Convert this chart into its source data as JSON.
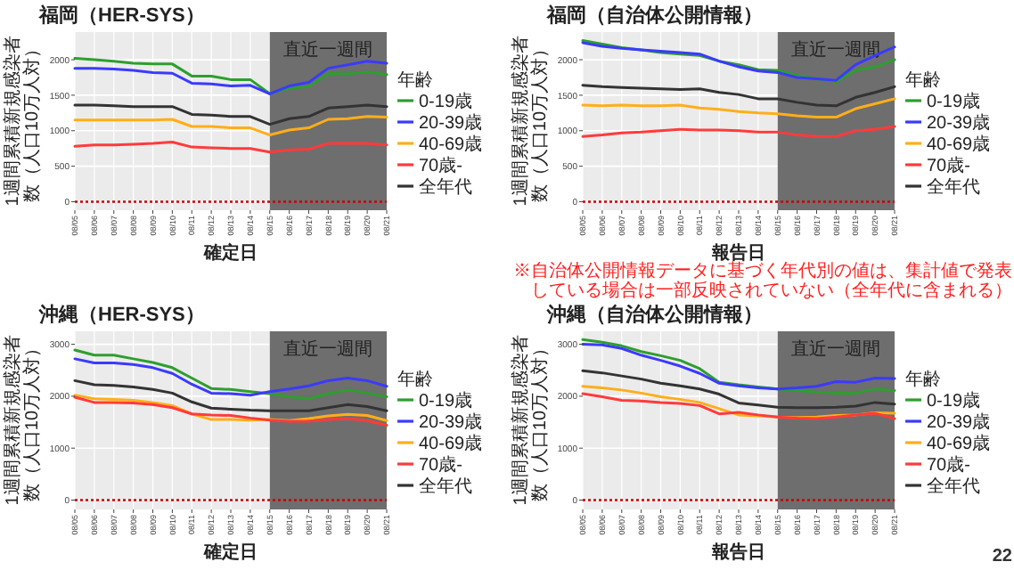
{
  "chart_data": [
    {
      "type": "line",
      "title": "福岡（HER-SYS）",
      "xlabel": "確定日",
      "ylabel": "1週間累積新規感染者数（人口10万人対）",
      "legend_title": "年齢",
      "legend": "right",
      "grid": true,
      "marker": "none",
      "line_style": "solid",
      "categories": [
        "08/05",
        "08/06",
        "08/07",
        "08/08",
        "08/09",
        "08/10",
        "08/11",
        "08/12",
        "08/13",
        "08/14",
        "08/15",
        "08/16",
        "08/17",
        "08/18",
        "08/19",
        "08/20",
        "08/21"
      ],
      "ylim": [
        -120,
        2390
      ],
      "yticks": [
        0,
        500,
        1000,
        1500,
        2000
      ],
      "bands": [
        {
          "axis": "x",
          "from": "08/15",
          "to": "08/21",
          "label": "直近一週間",
          "color": "#6e6e6e"
        }
      ],
      "ref_lines": [
        {
          "axis": "y",
          "value": 0,
          "color": "#cc0000",
          "line_style": "dotted"
        }
      ],
      "series": [
        {
          "name": "0-19歳",
          "color": "#2e9e2e",
          "values": [
            2020,
            2000,
            1980,
            1950,
            1940,
            1940,
            1770,
            1770,
            1720,
            1720,
            1520,
            1600,
            1620,
            1810,
            1800,
            1830,
            1790
          ]
        },
        {
          "name": "20-39歳",
          "color": "#3a3aff",
          "values": [
            1880,
            1880,
            1870,
            1850,
            1820,
            1810,
            1670,
            1660,
            1630,
            1640,
            1520,
            1630,
            1680,
            1880,
            1930,
            1980,
            1950
          ]
        },
        {
          "name": "40-69歳",
          "color": "#ffae1a",
          "values": [
            1150,
            1150,
            1150,
            1150,
            1150,
            1160,
            1060,
            1060,
            1040,
            1040,
            940,
            1010,
            1040,
            1160,
            1170,
            1200,
            1190
          ]
        },
        {
          "name": "70歳-",
          "color": "#ff3b3b",
          "values": [
            780,
            800,
            800,
            810,
            820,
            840,
            770,
            760,
            750,
            750,
            700,
            730,
            740,
            820,
            820,
            820,
            800
          ]
        },
        {
          "name": "全年代",
          "color": "#333333",
          "values": [
            1360,
            1360,
            1350,
            1340,
            1340,
            1340,
            1230,
            1220,
            1200,
            1200,
            1090,
            1170,
            1200,
            1320,
            1340,
            1360,
            1340
          ]
        }
      ]
    },
    {
      "type": "line",
      "title": "福岡（自治体公開情報）",
      "xlabel": "報告日",
      "ylabel": "1週間累積新規感染者数（人口10万人対）",
      "legend_title": "年齢",
      "legend": "right",
      "grid": true,
      "marker": "none",
      "line_style": "solid",
      "annotations": [
        "※自治体公開情報データに基づく年代別の値は、集計値で発表している場合は一部反映されていない（全年代に含まれる）"
      ],
      "categories": [
        "08/05",
        "08/06",
        "08/07",
        "08/08",
        "08/09",
        "08/10",
        "08/11",
        "08/12",
        "08/13",
        "08/14",
        "08/15",
        "08/16",
        "08/17",
        "08/18",
        "08/19",
        "08/20",
        "08/21"
      ],
      "ylim": [
        -120,
        2390
      ],
      "yticks": [
        0,
        500,
        1000,
        1500,
        2000
      ],
      "bands": [
        {
          "axis": "x",
          "from": "08/15",
          "to": "08/21",
          "label": "直近一週間",
          "color": "#6e6e6e"
        }
      ],
      "ref_lines": [
        {
          "axis": "y",
          "value": 0,
          "color": "#cc0000",
          "line_style": "dotted"
        }
      ],
      "series": [
        {
          "name": "0-19歳",
          "color": "#2e9e2e",
          "values": [
            2270,
            2220,
            2170,
            2140,
            2100,
            2080,
            2060,
            1980,
            1930,
            1860,
            1850,
            1780,
            1730,
            1690,
            1850,
            1900,
            2000
          ]
        },
        {
          "name": "20-39歳",
          "color": "#3a3aff",
          "values": [
            2240,
            2190,
            2160,
            2140,
            2120,
            2100,
            2080,
            1980,
            1900,
            1840,
            1820,
            1750,
            1730,
            1710,
            1930,
            2060,
            2180
          ]
        },
        {
          "name": "40-69歳",
          "color": "#ffae1a",
          "values": [
            1360,
            1350,
            1360,
            1350,
            1350,
            1360,
            1320,
            1300,
            1270,
            1250,
            1240,
            1210,
            1190,
            1190,
            1310,
            1380,
            1450
          ]
        },
        {
          "name": "70歳-",
          "color": "#ff3b3b",
          "values": [
            920,
            940,
            970,
            980,
            1000,
            1020,
            1010,
            1010,
            1000,
            980,
            980,
            940,
            920,
            920,
            1000,
            1020,
            1060
          ]
        },
        {
          "name": "全年代",
          "color": "#333333",
          "values": [
            1640,
            1620,
            1610,
            1600,
            1590,
            1580,
            1590,
            1540,
            1510,
            1450,
            1450,
            1400,
            1360,
            1350,
            1470,
            1540,
            1620
          ]
        }
      ]
    },
    {
      "type": "line",
      "title": "沖縄（HER-SYS）",
      "xlabel": "確定日",
      "ylabel": "1週間累積新規感染者数（人口10万人対）",
      "legend_title": "年齢",
      "legend": "right",
      "grid": true,
      "marker": "none",
      "line_style": "solid",
      "categories": [
        "08/05",
        "08/06",
        "08/07",
        "08/08",
        "08/09",
        "08/10",
        "08/11",
        "08/12",
        "08/13",
        "08/14",
        "08/15",
        "08/16",
        "08/17",
        "08/18",
        "08/19",
        "08/20",
        "08/21"
      ],
      "ylim": [
        -180,
        3250
      ],
      "yticks": [
        0,
        1000,
        2000,
        3000
      ],
      "bands": [
        {
          "axis": "x",
          "from": "08/15",
          "to": "08/21",
          "label": "直近一週間",
          "color": "#6e6e6e"
        }
      ],
      "ref_lines": [
        {
          "axis": "y",
          "value": 0,
          "color": "#cc0000",
          "line_style": "dotted"
        }
      ],
      "series": [
        {
          "name": "0-19歳",
          "color": "#2e9e2e",
          "values": [
            2890,
            2790,
            2790,
            2720,
            2650,
            2550,
            2350,
            2150,
            2130,
            2090,
            2050,
            1990,
            1950,
            2050,
            2120,
            2060,
            1990
          ]
        },
        {
          "name": "20-39歳",
          "color": "#3a3aff",
          "values": [
            2720,
            2640,
            2640,
            2610,
            2550,
            2440,
            2230,
            2060,
            2050,
            2020,
            2090,
            2140,
            2200,
            2300,
            2350,
            2300,
            2190
          ]
        },
        {
          "name": "40-69歳",
          "color": "#ffae1a",
          "values": [
            2020,
            1950,
            1940,
            1920,
            1880,
            1820,
            1660,
            1550,
            1550,
            1540,
            1550,
            1530,
            1570,
            1620,
            1650,
            1630,
            1530
          ]
        },
        {
          "name": "70歳-",
          "color": "#ff3b3b",
          "values": [
            1980,
            1880,
            1880,
            1870,
            1840,
            1780,
            1660,
            1640,
            1630,
            1580,
            1540,
            1520,
            1520,
            1550,
            1570,
            1530,
            1440
          ]
        },
        {
          "name": "全年代",
          "color": "#333333",
          "values": [
            2300,
            2220,
            2210,
            2180,
            2130,
            2060,
            1890,
            1770,
            1750,
            1730,
            1720,
            1720,
            1720,
            1780,
            1840,
            1800,
            1720
          ]
        }
      ]
    },
    {
      "type": "line",
      "title": "沖縄（自治体公開情報）",
      "xlabel": "報告日",
      "ylabel": "1週間累積新規感染者数（人口10万人対）",
      "legend_title": "年齢",
      "legend": "right",
      "grid": true,
      "marker": "none",
      "line_style": "solid",
      "annotations": [
        "22"
      ],
      "categories": [
        "08/05",
        "08/06",
        "08/07",
        "08/08",
        "08/09",
        "08/10",
        "08/11",
        "08/12",
        "08/13",
        "08/14",
        "08/15",
        "08/16",
        "08/17",
        "08/18",
        "08/19",
        "08/20",
        "08/21"
      ],
      "ylim": [
        -180,
        3250
      ],
      "yticks": [
        0,
        1000,
        2000,
        3000
      ],
      "bands": [
        {
          "axis": "x",
          "from": "08/15",
          "to": "08/21",
          "label": "直近一週間",
          "color": "#6e6e6e"
        }
      ],
      "ref_lines": [
        {
          "axis": "y",
          "value": 0,
          "color": "#cc0000",
          "line_style": "dotted"
        }
      ],
      "series": [
        {
          "name": "0-19歳",
          "color": "#2e9e2e",
          "values": [
            3090,
            3040,
            2970,
            2860,
            2780,
            2690,
            2530,
            2270,
            2220,
            2180,
            2140,
            2110,
            2080,
            2060,
            2060,
            2140,
            2110
          ]
        },
        {
          "name": "20-39歳",
          "color": "#3a3aff",
          "values": [
            3000,
            2990,
            2920,
            2790,
            2690,
            2580,
            2440,
            2250,
            2200,
            2160,
            2140,
            2160,
            2190,
            2280,
            2270,
            2350,
            2340
          ]
        },
        {
          "name": "40-69歳",
          "color": "#ffae1a",
          "values": [
            2190,
            2160,
            2120,
            2060,
            1990,
            1940,
            1880,
            1760,
            1640,
            1620,
            1600,
            1590,
            1600,
            1630,
            1640,
            1680,
            1670
          ]
        },
        {
          "name": "70歳-",
          "color": "#ff3b3b",
          "values": [
            2050,
            1990,
            1920,
            1910,
            1880,
            1860,
            1820,
            1660,
            1690,
            1640,
            1600,
            1580,
            1570,
            1600,
            1640,
            1670,
            1570
          ]
        },
        {
          "name": "全年代",
          "color": "#333333",
          "values": [
            2490,
            2450,
            2390,
            2330,
            2250,
            2200,
            2140,
            2040,
            1870,
            1830,
            1790,
            1780,
            1780,
            1790,
            1810,
            1880,
            1850
          ]
        }
      ]
    }
  ]
}
